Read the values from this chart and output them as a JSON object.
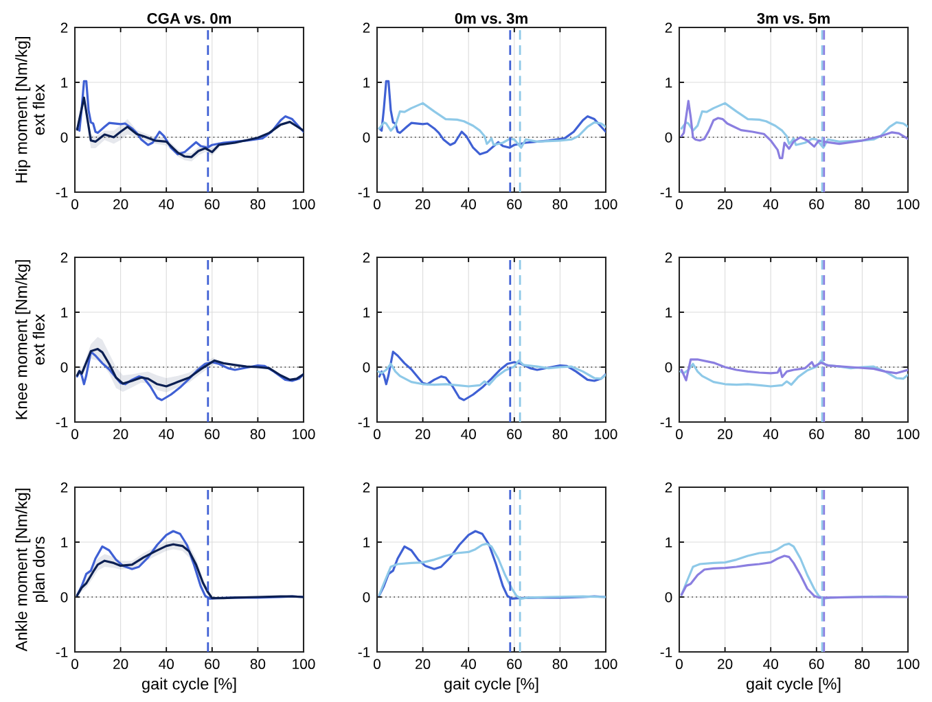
{
  "chart_data": [
    {
      "type": "line",
      "title": "CGA vs. 0m",
      "ylabel": "Hip moment [Nm/kg]\next flex",
      "xlim": [
        0,
        100
      ],
      "ylim": [
        -1,
        2
      ],
      "xticks": [
        0,
        20,
        40,
        60,
        80,
        100
      ],
      "yticks": [
        -1,
        0,
        1,
        2
      ],
      "grid": true,
      "line_style": "solid",
      "series": [
        {
          "color": "#3f60d4",
          "x": [
            1,
            2,
            3,
            4,
            5,
            6,
            7,
            8,
            9,
            10,
            13,
            15,
            20,
            22,
            25,
            27,
            29,
            32,
            34,
            37,
            39,
            42,
            45,
            48,
            53,
            55,
            58,
            60,
            65,
            75,
            82,
            86,
            90,
            92,
            95,
            98,
            100
          ],
          "values": [
            0.16,
            0.12,
            0.53,
            1.02,
            1.02,
            0.49,
            0.27,
            0.25,
            0.1,
            0.08,
            0.19,
            0.26,
            0.24,
            0.25,
            0.16,
            0.08,
            -0.04,
            -0.14,
            -0.1,
            0.1,
            0.02,
            -0.19,
            -0.31,
            -0.27,
            -0.09,
            -0.16,
            -0.19,
            -0.14,
            -0.1,
            -0.06,
            -0.02,
            0.1,
            0.31,
            0.38,
            0.33,
            0.19,
            0.1
          ]
        },
        {
          "color": "#0b1f52",
          "x": [
            1,
            4,
            7,
            9,
            13,
            17,
            20,
            23,
            27,
            30,
            35,
            40,
            45,
            48,
            51,
            54,
            57,
            60,
            63,
            70,
            80,
            85,
            90,
            94,
            97,
            100
          ],
          "values": [
            0.14,
            0.72,
            -0.06,
            -0.08,
            0.05,
            0,
            0.1,
            0.19,
            0.06,
            0.02,
            -0.06,
            -0.08,
            -0.28,
            -0.35,
            -0.36,
            -0.25,
            -0.2,
            -0.27,
            -0.14,
            -0.1,
            -0.01,
            0.08,
            0.23,
            0.28,
            0.2,
            0.12
          ],
          "lower": [
            0.08,
            0.6,
            -0.2,
            -0.2,
            -0.05,
            -0.12,
            -0.05,
            0.05,
            0,
            -0.05,
            -0.12,
            -0.15,
            -0.35,
            -0.42,
            -0.44,
            -0.33,
            -0.27,
            -0.33,
            -0.2,
            null,
            null,
            null,
            null,
            null,
            null,
            null
          ],
          "upper": [
            0.2,
            0.8,
            0.05,
            0.02,
            0.12,
            0.12,
            0.22,
            0.33,
            0.13,
            0.08,
            0,
            -0.02,
            -0.22,
            -0.28,
            -0.29,
            -0.18,
            -0.13,
            -0.2,
            -0.08,
            null,
            null,
            null,
            null,
            null,
            null,
            null
          ]
        }
      ],
      "ref_lines": [
        {
          "axis": "y",
          "value": 0,
          "color": "#333333",
          "line_style": "dotted"
        },
        {
          "axis": "x",
          "value": 58.2,
          "color": "#3f60d4",
          "line_style": "dashed"
        }
      ]
    },
    {
      "type": "line",
      "title": "0m vs. 3m",
      "xlim": [
        0,
        100
      ],
      "ylim": [
        -1,
        2
      ],
      "xticks": [
        0,
        20,
        40,
        60,
        80,
        100
      ],
      "yticks": [
        -1,
        0,
        1,
        2
      ],
      "grid": true,
      "line_style": "solid",
      "series": [
        {
          "color": "#3f60d4",
          "x": [
            1,
            2,
            3,
            4,
            5,
            6,
            7,
            8,
            9,
            10,
            13,
            15,
            20,
            22,
            25,
            27,
            29,
            32,
            34,
            37,
            39,
            42,
            45,
            48,
            53,
            55,
            58,
            60,
            65,
            75,
            82,
            86,
            90,
            92,
            95,
            98,
            100
          ],
          "values": [
            0.16,
            0.12,
            0.53,
            1.02,
            1.02,
            0.49,
            0.27,
            0.25,
            0.1,
            0.08,
            0.19,
            0.26,
            0.24,
            0.25,
            0.16,
            0.08,
            -0.04,
            -0.14,
            -0.1,
            0.1,
            0.02,
            -0.19,
            -0.31,
            -0.27,
            -0.09,
            -0.16,
            -0.19,
            -0.14,
            -0.1,
            -0.06,
            -0.02,
            0.1,
            0.31,
            0.38,
            0.33,
            0.19,
            0.1
          ]
        },
        {
          "color": "#8ec9e8",
          "x": [
            1,
            3,
            4,
            6,
            8,
            10,
            12,
            15,
            20,
            25,
            30,
            35,
            38,
            42,
            45,
            47,
            48,
            49,
            50,
            51,
            55,
            58,
            60,
            63,
            65,
            70,
            80,
            85,
            88,
            92,
            95,
            98,
            100
          ],
          "values": [
            0.16,
            0.27,
            0.25,
            0.12,
            0.21,
            0.47,
            0.46,
            0.53,
            0.62,
            0.47,
            0.33,
            0.32,
            0.29,
            0.21,
            0.12,
            0.02,
            -0.12,
            -0.08,
            -0.02,
            -0.14,
            -0.1,
            -0.03,
            -0.04,
            -0.19,
            -0.04,
            -0.08,
            -0.06,
            -0.04,
            0.02,
            0.19,
            0.27,
            0.25,
            0.19
          ]
        }
      ],
      "ref_lines": [
        {
          "axis": "y",
          "value": 0,
          "color": "#333333",
          "line_style": "dotted"
        },
        {
          "axis": "x",
          "value": 58.2,
          "color": "#3f60d4",
          "line_style": "dashed"
        },
        {
          "axis": "x",
          "value": 62.5,
          "color": "#8ec9e8",
          "line_style": "dashed"
        }
      ]
    },
    {
      "type": "line",
      "title": "3m vs. 5m",
      "xlim": [
        0,
        100
      ],
      "ylim": [
        -1,
        2
      ],
      "xticks": [
        0,
        20,
        40,
        60,
        80,
        100
      ],
      "yticks": [
        -1,
        0,
        1,
        2
      ],
      "grid": true,
      "line_style": "solid",
      "series": [
        {
          "color": "#8ec9e8",
          "x": [
            1,
            3,
            4,
            6,
            8,
            10,
            12,
            15,
            20,
            25,
            30,
            35,
            38,
            42,
            45,
            47,
            48,
            49,
            50,
            51,
            55,
            58,
            60,
            63,
            65,
            70,
            80,
            85,
            88,
            92,
            95,
            98,
            100
          ],
          "values": [
            0.16,
            0.27,
            0.25,
            0.12,
            0.21,
            0.47,
            0.46,
            0.53,
            0.62,
            0.47,
            0.33,
            0.32,
            0.29,
            0.21,
            0.12,
            0.02,
            -0.12,
            -0.08,
            -0.02,
            -0.14,
            -0.1,
            -0.03,
            -0.04,
            -0.19,
            -0.04,
            -0.08,
            -0.06,
            -0.04,
            0.02,
            0.19,
            0.27,
            0.25,
            0.19
          ]
        },
        {
          "color": "#8a7ee0",
          "x": [
            1,
            2,
            4,
            5,
            6,
            7,
            9,
            11,
            13,
            15,
            17,
            19,
            21,
            23,
            27,
            32,
            37,
            40,
            43,
            44,
            45,
            46,
            48,
            50,
            53,
            56,
            59,
            61,
            63,
            70,
            80,
            88,
            93,
            96,
            100
          ],
          "values": [
            0.02,
            0.08,
            0.66,
            0.37,
            0,
            -0.04,
            -0.06,
            -0.03,
            0.12,
            0.31,
            0.35,
            0.33,
            0.25,
            0.21,
            0.13,
            0.1,
            0.06,
            -0.06,
            -0.23,
            -0.38,
            -0.38,
            -0.1,
            -0.21,
            -0.08,
            0,
            -0.06,
            -0.17,
            -0.06,
            -0.08,
            -0.12,
            -0.06,
            0.02,
            0.09,
            0.07,
            -0.03
          ]
        }
      ],
      "ref_lines": [
        {
          "axis": "y",
          "value": 0,
          "color": "#333333",
          "line_style": "dotted"
        },
        {
          "axis": "x",
          "value": 62.5,
          "color": "#8ec9e8",
          "line_style": "dashed"
        },
        {
          "axis": "x",
          "value": 63.3,
          "color": "#8a7ee0",
          "line_style": "dashed"
        }
      ]
    },
    {
      "type": "line",
      "ylabel": "Knee moment [Nm/kg]\next flex",
      "xlim": [
        0,
        100
      ],
      "ylim": [
        -1,
        2
      ],
      "xticks": [
        0,
        20,
        40,
        60,
        80,
        100
      ],
      "yticks": [
        -1,
        0,
        1,
        2
      ],
      "grid": true,
      "line_style": "solid",
      "series": [
        {
          "color": "#3f60d4",
          "x": [
            1,
            2,
            3,
            4,
            5,
            7,
            9,
            12,
            15,
            18,
            20,
            22,
            25,
            28,
            30,
            33,
            36,
            38,
            42,
            46,
            50,
            54,
            57,
            60,
            63,
            67,
            70,
            75,
            80,
            83,
            87,
            92,
            95,
            98,
            100
          ],
          "values": [
            -0.17,
            -0.08,
            -0.15,
            -0.31,
            -0.15,
            0.28,
            0.21,
            0.07,
            -0.04,
            -0.19,
            -0.29,
            -0.31,
            -0.23,
            -0.17,
            -0.19,
            -0.35,
            -0.56,
            -0.6,
            -0.5,
            -0.37,
            -0.21,
            -0.04,
            0.06,
            0.09,
            0.06,
            -0.02,
            -0.05,
            -0.01,
            0.03,
            0.02,
            -0.08,
            -0.23,
            -0.25,
            -0.21,
            -0.13
          ]
        },
        {
          "color": "#0b1f52",
          "x": [
            1,
            2,
            3,
            7,
            10,
            12,
            15,
            18,
            21,
            25,
            29,
            32,
            36,
            40,
            45,
            50,
            55,
            58,
            61,
            65,
            70,
            75,
            80,
            85,
            90,
            94,
            97,
            100
          ],
          "values": [
            -0.15,
            -0.07,
            -0.12,
            0.29,
            0.33,
            0.27,
            0.06,
            -0.19,
            -0.3,
            -0.25,
            -0.19,
            -0.21,
            -0.31,
            -0.35,
            -0.27,
            -0.19,
            -0.04,
            0.04,
            0.12,
            0.07,
            0.04,
            0.01,
            0,
            -0.02,
            -0.15,
            -0.23,
            -0.21,
            -0.13
          ],
          "lower": [
            -0.2,
            -0.12,
            -0.18,
            0.15,
            0.12,
            0.05,
            -0.12,
            -0.38,
            -0.45,
            -0.37,
            -0.28,
            -0.3,
            -0.42,
            -0.46,
            -0.37,
            -0.28,
            -0.12,
            -0.03,
            0.05,
            null,
            null,
            null,
            null,
            null,
            null,
            null,
            null,
            null
          ],
          "upper": [
            -0.1,
            0.02,
            -0.05,
            0.42,
            0.55,
            0.5,
            0.25,
            0,
            -0.15,
            -0.13,
            -0.1,
            -0.08,
            -0.15,
            -0.2,
            -0.16,
            -0.1,
            0.04,
            0.12,
            0.18,
            null,
            null,
            null,
            null,
            null,
            null,
            null,
            null,
            null
          ]
        }
      ],
      "ref_lines": [
        {
          "axis": "y",
          "value": 0,
          "color": "#333333",
          "line_style": "dotted"
        },
        {
          "axis": "x",
          "value": 58.2,
          "color": "#3f60d4",
          "line_style": "dashed"
        }
      ]
    },
    {
      "type": "line",
      "xlim": [
        0,
        100
      ],
      "ylim": [
        -1,
        2
      ],
      "xticks": [
        0,
        20,
        40,
        60,
        80,
        100
      ],
      "yticks": [
        -1,
        0,
        1,
        2
      ],
      "grid": true,
      "line_style": "solid",
      "series": [
        {
          "color": "#3f60d4",
          "x": [
            1,
            2,
            3,
            4,
            5,
            7,
            9,
            12,
            15,
            18,
            20,
            22,
            25,
            28,
            30,
            33,
            36,
            38,
            42,
            46,
            50,
            54,
            57,
            60,
            63,
            67,
            70,
            75,
            80,
            83,
            87,
            92,
            95,
            98,
            100
          ],
          "values": [
            -0.17,
            -0.08,
            -0.15,
            -0.31,
            -0.15,
            0.28,
            0.21,
            0.07,
            -0.04,
            -0.19,
            -0.29,
            -0.31,
            -0.23,
            -0.17,
            -0.19,
            -0.35,
            -0.56,
            -0.6,
            -0.5,
            -0.37,
            -0.21,
            -0.04,
            0.06,
            0.09,
            0.06,
            -0.02,
            -0.05,
            -0.01,
            0.03,
            0.02,
            -0.08,
            -0.23,
            -0.25,
            -0.21,
            -0.13
          ]
        },
        {
          "color": "#8ec9e8",
          "x": [
            0.5,
            2,
            4,
            6,
            8,
            10,
            15,
            20,
            25,
            30,
            35,
            40,
            45,
            47,
            49,
            52,
            56,
            60,
            62,
            64,
            70,
            75,
            80,
            85,
            90,
            95,
            98,
            100
          ],
          "values": [
            -0.08,
            -0.11,
            -0.05,
            0.06,
            -0.08,
            -0.16,
            -0.27,
            -0.31,
            -0.32,
            -0.31,
            -0.33,
            -0.35,
            -0.33,
            -0.26,
            -0.32,
            -0.18,
            -0.06,
            0.01,
            0.12,
            0.04,
            0.01,
            -0.02,
            0,
            0.01,
            -0.08,
            -0.2,
            -0.21,
            -0.14
          ]
        }
      ],
      "ref_lines": [
        {
          "axis": "y",
          "value": 0,
          "color": "#333333",
          "line_style": "dotted"
        },
        {
          "axis": "x",
          "value": 58.2,
          "color": "#3f60d4",
          "line_style": "dashed"
        },
        {
          "axis": "x",
          "value": 62.5,
          "color": "#8ec9e8",
          "line_style": "dashed"
        }
      ]
    },
    {
      "type": "line",
      "xlim": [
        0,
        100
      ],
      "ylim": [
        -1,
        2
      ],
      "xticks": [
        0,
        20,
        40,
        60,
        80,
        100
      ],
      "yticks": [
        -1,
        0,
        1,
        2
      ],
      "grid": true,
      "line_style": "solid",
      "series": [
        {
          "color": "#8ec9e8",
          "x": [
            0.5,
            2,
            4,
            6,
            8,
            10,
            15,
            20,
            25,
            30,
            35,
            40,
            45,
            47,
            49,
            52,
            56,
            60,
            62,
            64,
            70,
            75,
            80,
            85,
            90,
            95,
            98,
            100
          ],
          "values": [
            -0.08,
            -0.11,
            -0.05,
            0.06,
            -0.08,
            -0.16,
            -0.27,
            -0.31,
            -0.32,
            -0.31,
            -0.33,
            -0.35,
            -0.33,
            -0.26,
            -0.32,
            -0.18,
            -0.06,
            0.01,
            0.12,
            0.04,
            0.01,
            -0.02,
            0,
            0.01,
            -0.08,
            -0.2,
            -0.21,
            -0.14
          ]
        },
        {
          "color": "#8a7ee0",
          "x": [
            1,
            3,
            5,
            8,
            15,
            20,
            25,
            30,
            35,
            40,
            43,
            44,
            45,
            47,
            50,
            55,
            58,
            59,
            62,
            65,
            75,
            85,
            90,
            95,
            100
          ],
          "values": [
            -0.05,
            -0.24,
            0.14,
            0.14,
            0.08,
            0,
            -0.05,
            -0.08,
            -0.1,
            -0.11,
            -0.1,
            -0.02,
            -0.18,
            -0.08,
            -0.05,
            -0.02,
            0.09,
            0.01,
            0.08,
            0.03,
            0,
            -0.03,
            -0.08,
            -0.11,
            -0.05
          ]
        }
      ],
      "ref_lines": [
        {
          "axis": "y",
          "value": 0,
          "color": "#333333",
          "line_style": "dotted"
        },
        {
          "axis": "x",
          "value": 62.5,
          "color": "#8ec9e8",
          "line_style": "dashed"
        },
        {
          "axis": "x",
          "value": 63.3,
          "color": "#8a7ee0",
          "line_style": "dashed"
        }
      ]
    },
    {
      "type": "line",
      "ylabel": "Ankle moment [Nm/kg]\nplan dors",
      "xlabel": "gait cycle [%]",
      "xlim": [
        0,
        100
      ],
      "ylim": [
        -1,
        2
      ],
      "xticks": [
        0,
        20,
        40,
        60,
        80,
        100
      ],
      "yticks": [
        -1,
        0,
        1,
        2
      ],
      "grid": true,
      "line_style": "solid",
      "series": [
        {
          "color": "#3f60d4",
          "x": [
            1,
            3,
            5,
            7,
            9,
            12,
            15,
            18,
            21,
            25,
            28,
            32,
            36,
            40,
            43,
            46,
            49,
            52,
            55,
            57,
            59,
            62,
            70,
            80,
            90,
            95,
            100
          ],
          "values": [
            0.03,
            0.2,
            0.42,
            0.48,
            0.7,
            0.92,
            0.85,
            0.68,
            0.57,
            0.51,
            0.55,
            0.72,
            0.95,
            1.13,
            1.2,
            1.15,
            0.95,
            0.6,
            0.2,
            0.02,
            -0.03,
            -0.02,
            -0.01,
            -0.01,
            0,
            0.01,
            0
          ]
        },
        {
          "color": "#0b1f52",
          "x": [
            1,
            3,
            5,
            8,
            10,
            13,
            17,
            20,
            25,
            30,
            35,
            40,
            43,
            47,
            50,
            53,
            56,
            58,
            60,
            65,
            70,
            80,
            90,
            95,
            100
          ],
          "values": [
            0.03,
            0.17,
            0.25,
            0.46,
            0.59,
            0.66,
            0.62,
            0.57,
            0.59,
            0.72,
            0.83,
            0.93,
            0.96,
            0.93,
            0.83,
            0.59,
            0.26,
            0.1,
            -0.02,
            -0.02,
            -0.01,
            0,
            0.01,
            0.01,
            0
          ],
          "lower": [
            0.01,
            0.1,
            0.17,
            0.35,
            0.48,
            0.55,
            0.53,
            0.5,
            0.52,
            0.63,
            0.74,
            0.84,
            0.87,
            0.84,
            0.72,
            0.48,
            0.18,
            0.04,
            -0.04,
            null,
            null,
            null,
            null,
            null,
            null
          ],
          "upper": [
            0.05,
            0.24,
            0.33,
            0.57,
            0.7,
            0.78,
            0.73,
            0.66,
            0.66,
            0.8,
            0.91,
            1.01,
            1.04,
            1.02,
            0.94,
            0.7,
            0.34,
            0.16,
            0,
            null,
            null,
            null,
            null,
            null,
            null
          ]
        }
      ],
      "ref_lines": [
        {
          "axis": "y",
          "value": 0,
          "color": "#333333",
          "line_style": "dotted"
        },
        {
          "axis": "x",
          "value": 58.2,
          "color": "#3f60d4",
          "line_style": "dashed"
        }
      ]
    },
    {
      "type": "line",
      "xlabel": "gait cycle [%]",
      "xlim": [
        0,
        100
      ],
      "ylim": [
        -1,
        2
      ],
      "xticks": [
        0,
        20,
        40,
        60,
        80,
        100
      ],
      "yticks": [
        -1,
        0,
        1,
        2
      ],
      "grid": true,
      "line_style": "solid",
      "series": [
        {
          "color": "#3f60d4",
          "x": [
            1,
            3,
            5,
            7,
            9,
            12,
            15,
            18,
            21,
            25,
            28,
            32,
            36,
            40,
            43,
            46,
            49,
            52,
            55,
            57,
            59,
            62,
            70,
            80,
            90,
            95,
            100
          ],
          "values": [
            0.03,
            0.2,
            0.42,
            0.48,
            0.7,
            0.92,
            0.85,
            0.68,
            0.57,
            0.51,
            0.55,
            0.72,
            0.95,
            1.13,
            1.2,
            1.15,
            0.95,
            0.6,
            0.2,
            0.02,
            -0.03,
            -0.02,
            -0.01,
            -0.01,
            0,
            0.01,
            0
          ]
        },
        {
          "color": "#8ec9e8",
          "x": [
            1,
            3,
            6,
            9,
            15,
            20,
            25,
            30,
            35,
            40,
            43,
            46,
            48,
            50,
            53,
            56,
            59,
            61,
            63,
            66,
            75,
            90,
            100
          ],
          "values": [
            0.04,
            0.25,
            0.55,
            0.6,
            0.62,
            0.63,
            0.68,
            0.75,
            0.8,
            0.82,
            0.87,
            0.95,
            0.97,
            0.92,
            0.7,
            0.4,
            0.15,
            0.02,
            -0.03,
            -0.01,
            0,
            0.01,
            0
          ]
        }
      ],
      "ref_lines": [
        {
          "axis": "y",
          "value": 0,
          "color": "#333333",
          "line_style": "dotted"
        },
        {
          "axis": "x",
          "value": 58.2,
          "color": "#3f60d4",
          "line_style": "dashed"
        },
        {
          "axis": "x",
          "value": 62.5,
          "color": "#8ec9e8",
          "line_style": "dashed"
        }
      ]
    },
    {
      "type": "line",
      "xlabel": "gait cycle [%]",
      "xlim": [
        0,
        100
      ],
      "ylim": [
        -1,
        2
      ],
      "xticks": [
        0,
        20,
        40,
        60,
        80,
        100
      ],
      "yticks": [
        -1,
        0,
        1,
        2
      ],
      "grid": true,
      "line_style": "solid",
      "series": [
        {
          "color": "#8ec9e8",
          "x": [
            1,
            3,
            6,
            9,
            15,
            20,
            25,
            30,
            35,
            40,
            43,
            46,
            48,
            50,
            53,
            56,
            59,
            61,
            63,
            66,
            75,
            90,
            100
          ],
          "values": [
            0.04,
            0.25,
            0.55,
            0.6,
            0.62,
            0.63,
            0.68,
            0.75,
            0.8,
            0.82,
            0.87,
            0.95,
            0.97,
            0.92,
            0.7,
            0.4,
            0.15,
            0.02,
            -0.03,
            -0.01,
            0,
            0.01,
            0
          ]
        },
        {
          "color": "#8a7ee0",
          "x": [
            1,
            3,
            5,
            8,
            11,
            15,
            20,
            25,
            30,
            35,
            40,
            43,
            46,
            48,
            50,
            53,
            56,
            59,
            61,
            65,
            80,
            100
          ],
          "values": [
            0.04,
            0.2,
            0.24,
            0.4,
            0.5,
            0.52,
            0.53,
            0.55,
            0.58,
            0.6,
            0.63,
            0.7,
            0.75,
            0.73,
            0.62,
            0.4,
            0.15,
            0.02,
            -0.01,
            -0.01,
            0,
            0
          ]
        }
      ],
      "ref_lines": [
        {
          "axis": "y",
          "value": 0,
          "color": "#333333",
          "line_style": "dotted"
        },
        {
          "axis": "x",
          "value": 62.5,
          "color": "#8ec9e8",
          "line_style": "dashed"
        },
        {
          "axis": "x",
          "value": 63.3,
          "color": "#8a7ee0",
          "line_style": "dashed"
        }
      ]
    }
  ]
}
